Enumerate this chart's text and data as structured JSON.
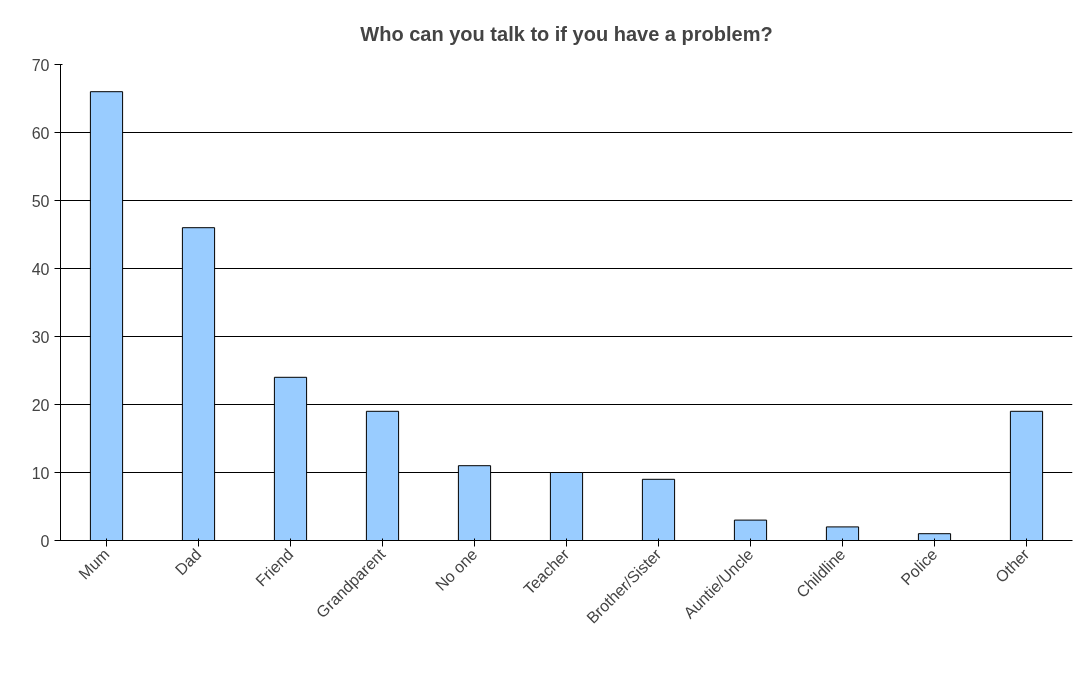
{
  "chart_data": {
    "type": "bar",
    "title": "Who can you talk to if you have a problem?",
    "categories": [
      "Mum",
      "Dad",
      "Friend",
      "Grandparent",
      "No one",
      "Teacher",
      "Brother/Sister",
      "Auntie/Uncle",
      "Childline",
      "Police",
      "Other"
    ],
    "values": [
      66,
      46,
      24,
      19,
      11,
      10,
      9,
      3,
      2,
      1,
      19
    ],
    "color": "#99ccff",
    "ylim": [
      0,
      70
    ],
    "yticks": [
      0,
      10,
      20,
      30,
      40,
      50,
      60,
      70
    ],
    "grid": "y"
  }
}
